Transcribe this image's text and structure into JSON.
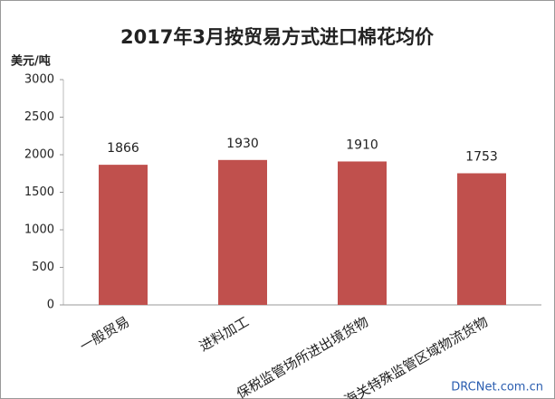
{
  "chart_data": {
    "type": "bar",
    "title": "2017年3月按贸易方式进口棉花均价",
    "y_label": "美元/吨",
    "categories": [
      "一般贸易",
      "进料加工",
      "保税监管场所进出境货物",
      "海关特殊监管区域物流货物"
    ],
    "values": [
      1866,
      1930,
      1910,
      1753
    ],
    "color": "#c0504d",
    "ylim": [
      0,
      3000
    ],
    "yticks": [
      0,
      500,
      1000,
      1500,
      2000,
      2500,
      3000
    ],
    "grid": false
  },
  "watermark": "DRCNet.com.cn"
}
